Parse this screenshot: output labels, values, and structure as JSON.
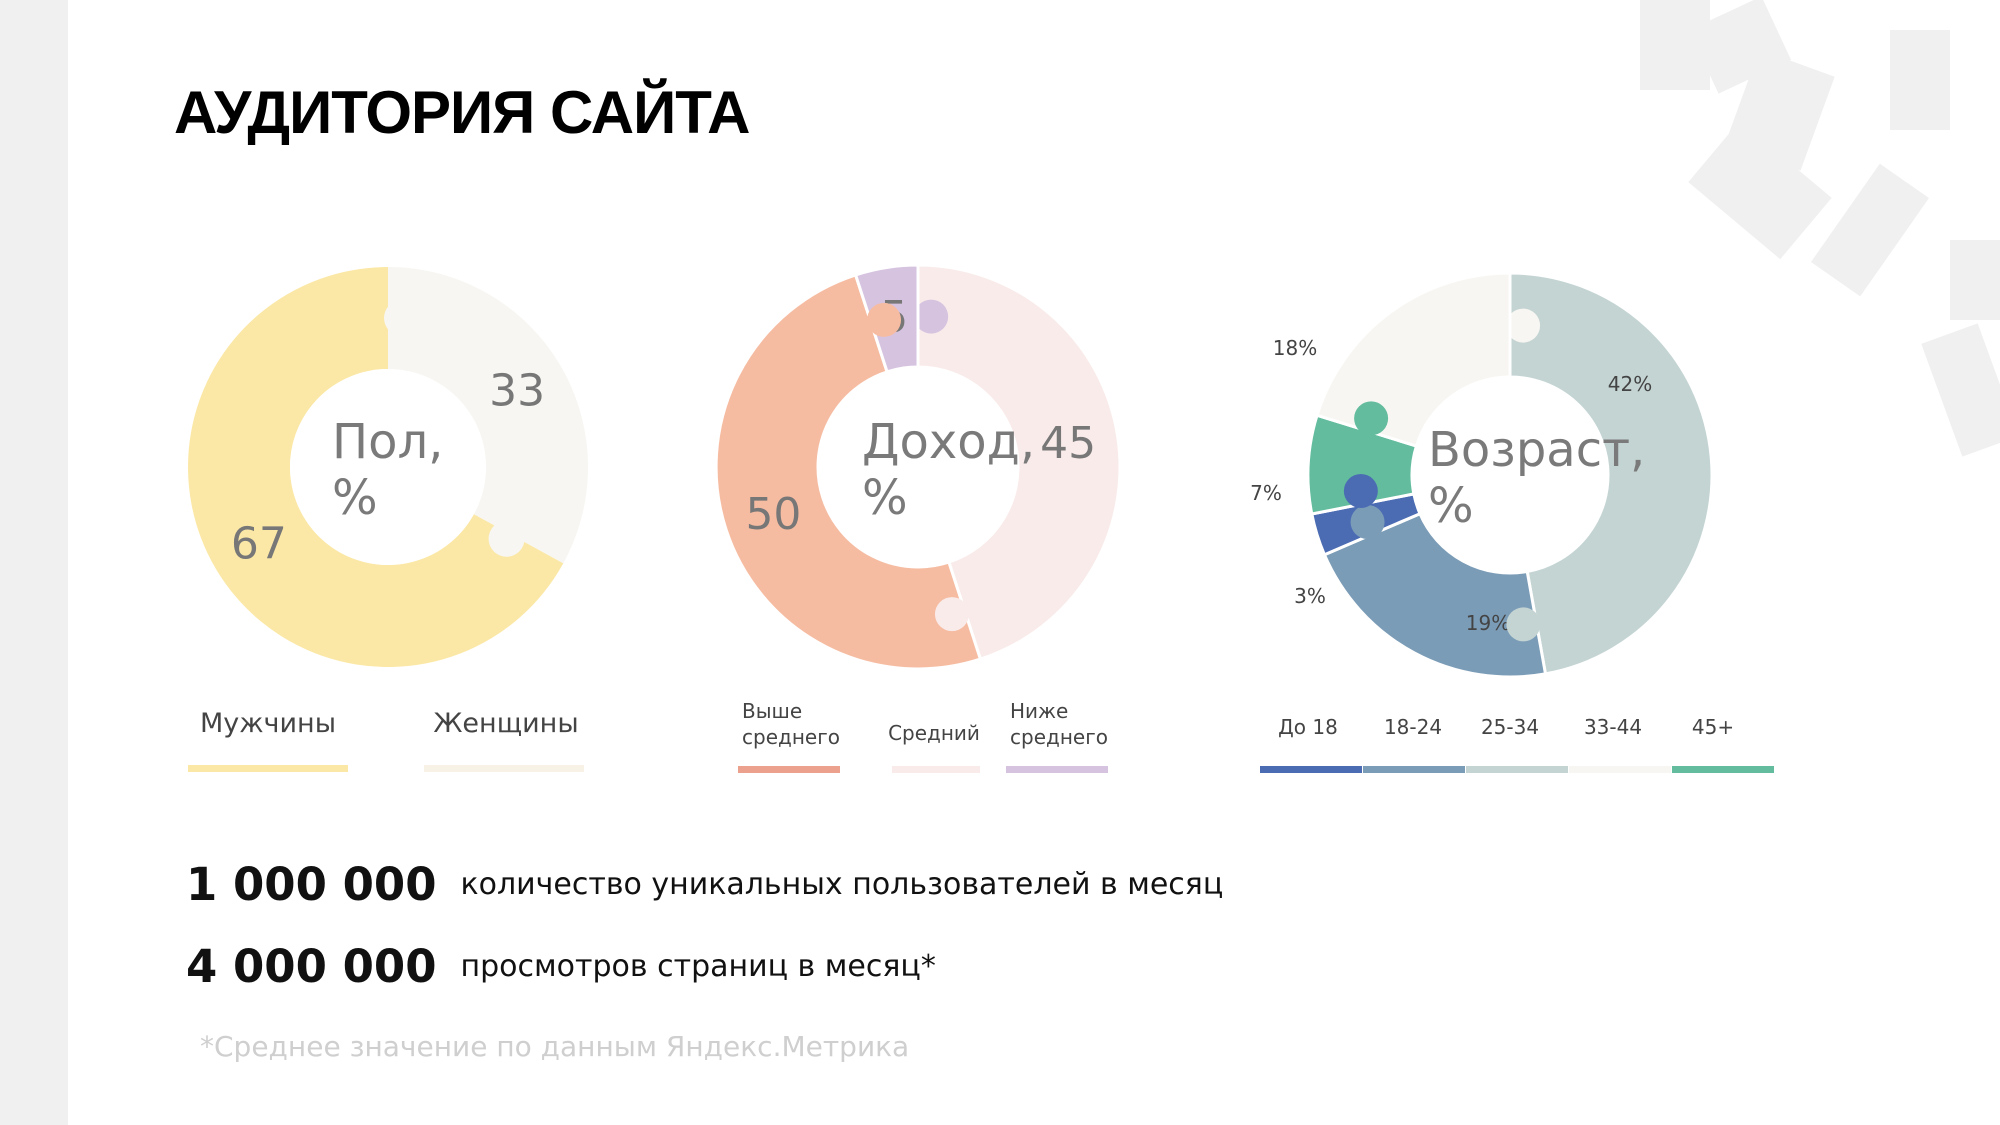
{
  "page": {
    "title": "АУДИТОРИЯ САЙТА",
    "background": "#ffffff",
    "sidebar_color": "#f0f0f0"
  },
  "stats": [
    {
      "value": "1 000 000",
      "label": "количество уникальных пользователей в месяц"
    },
    {
      "value": "4 000 000",
      "label": "просмотров страниц в месяц*"
    }
  ],
  "footnote": "*Среднее значение по данным Яндекс.Метрика",
  "chart_data": [
    {
      "type": "pie",
      "center_label": [
        "Пол,",
        "%"
      ],
      "slices": [
        {
          "name": "Мужчины",
          "value": 67,
          "label": "67",
          "color": "#fbe8a6"
        },
        {
          "name": "Женщины",
          "value": 33,
          "label": "33",
          "color": "#f7f6f2"
        }
      ],
      "legend": [
        {
          "label": "Мужчины",
          "color": "#fbe8a6"
        },
        {
          "label": "Женщины",
          "color": "#f8f2e6"
        }
      ]
    },
    {
      "type": "pie",
      "center_label": [
        "Доход,",
        "%"
      ],
      "slices": [
        {
          "name": "Средний",
          "value": 45,
          "label": "45",
          "color": "#f9ebea"
        },
        {
          "name": "Выше среднего",
          "value": 50,
          "label": "50",
          "color": "#f6bca2"
        },
        {
          "name": "Ниже среднего",
          "value": 5,
          "label": "5",
          "color": "#d6c3e0"
        }
      ],
      "legend": [
        {
          "label": "Выше среднего",
          "lines": [
            "Выше",
            "среднего"
          ],
          "color": "#eba18e"
        },
        {
          "label": "Средний",
          "lines": [
            "Средний"
          ],
          "color": "#f9ebea"
        },
        {
          "label": "Ниже среднего",
          "lines": [
            "Ниже",
            "среднего"
          ],
          "color": "#d6c3e0"
        }
      ]
    },
    {
      "type": "pie",
      "center_label": [
        "Возраст,",
        "%"
      ],
      "slices": [
        {
          "name": "25-34",
          "value": 42,
          "label": "42%",
          "color": "#c4d4d3"
        },
        {
          "name": "18-24",
          "value": 19,
          "label": "19%",
          "color": "#7b9cb7"
        },
        {
          "name": "До 18",
          "value": 3,
          "label": "3%",
          "color": "#4b6cb3"
        },
        {
          "name": "45+",
          "value": 7,
          "label": "7%",
          "color": "#62bc9d"
        },
        {
          "name": "33-44",
          "value": 18,
          "label": "18%",
          "color": "#f7f6f2"
        }
      ],
      "legend": [
        {
          "label": "До 18",
          "color": "#4b6cb3"
        },
        {
          "label": "18-24",
          "color": "#7b9cb7"
        },
        {
          "label": "25-34",
          "color": "#c4d4d3"
        },
        {
          "label": "33-44",
          "color": "#f7f6f2"
        },
        {
          "label": "45+",
          "color": "#62bc9d"
        }
      ]
    }
  ]
}
